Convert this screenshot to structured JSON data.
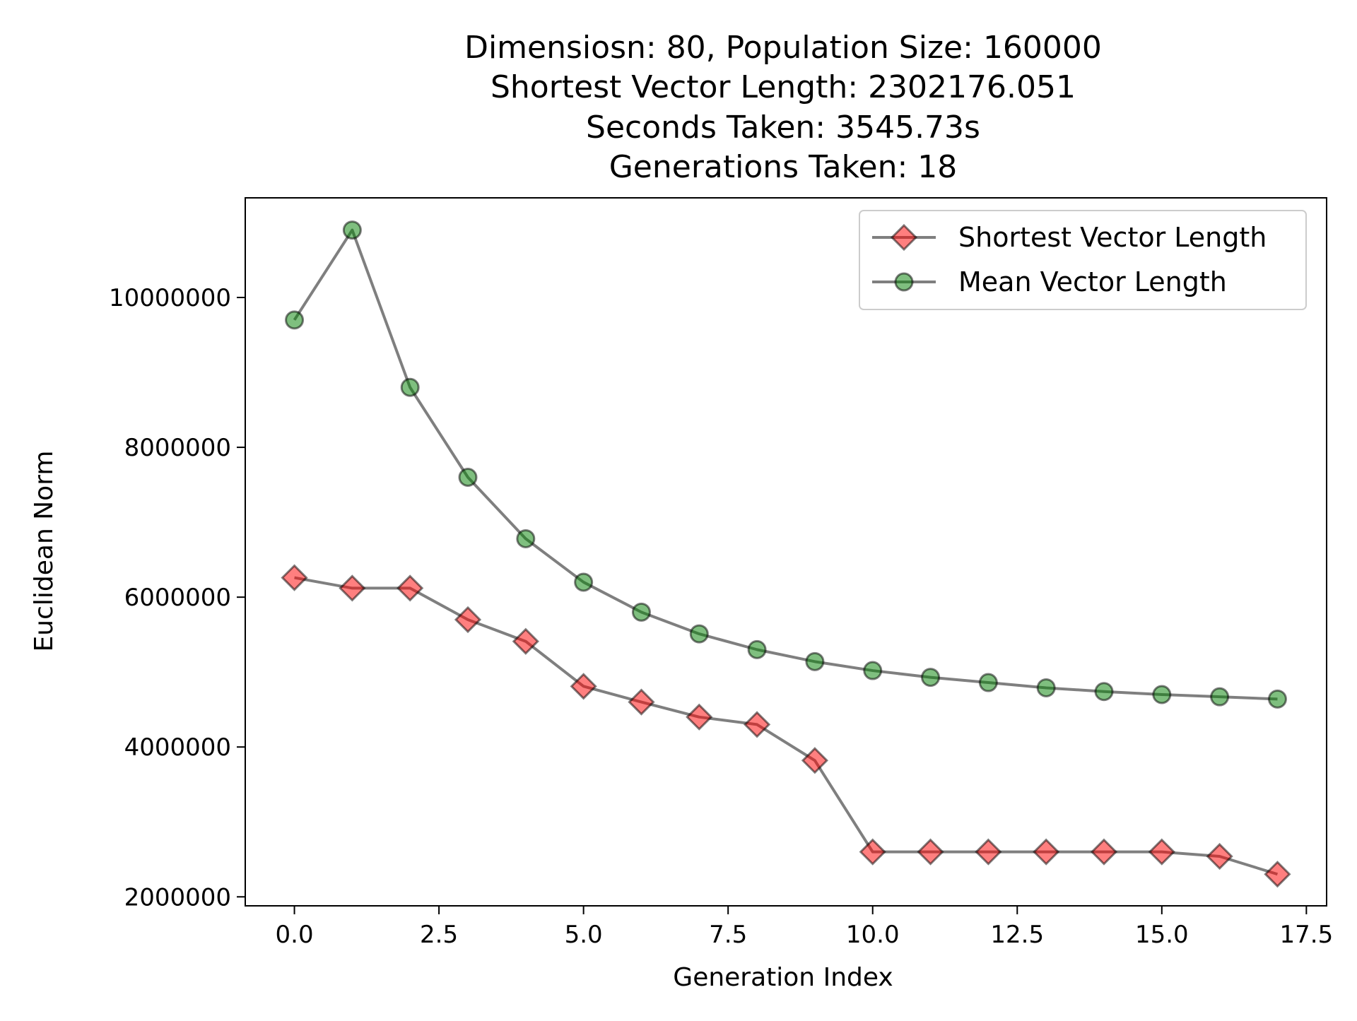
{
  "chart_data": {
    "type": "line",
    "title_lines": [
      "Dimensiosn: 80, Population Size: 160000",
      "Shortest Vector Length: 2302176.051",
      "Seconds Taken: 3545.73s",
      "Generations Taken: 18"
    ],
    "xlabel": "Generation Index",
    "ylabel": "Euclidean Norm",
    "xlim": [
      -0.85,
      17.85
    ],
    "ylim": [
      1880000,
      11330000
    ],
    "x_ticks": [
      0.0,
      2.5,
      5.0,
      7.5,
      10.0,
      12.5,
      15.0,
      17.5
    ],
    "x_tick_labels": [
      "0.0",
      "2.5",
      "5.0",
      "7.5",
      "10.0",
      "12.5",
      "15.0",
      "17.5"
    ],
    "y_ticks": [
      2000000,
      4000000,
      6000000,
      8000000,
      10000000
    ],
    "y_tick_labels": [
      "2000000",
      "4000000",
      "6000000",
      "8000000",
      "10000000"
    ],
    "grid": false,
    "legend_position": "top-right",
    "x": [
      0,
      1,
      2,
      3,
      4,
      5,
      6,
      7,
      8,
      9,
      10,
      11,
      12,
      13,
      14,
      15,
      16,
      17
    ],
    "series": [
      {
        "name": "Shortest Vector Length",
        "marker": "diamond",
        "marker_color": "#ff0000",
        "line_color": "#000000",
        "values": [
          6260000,
          6120000,
          6120000,
          5700000,
          5410000,
          4810000,
          4600000,
          4400000,
          4300000,
          3820000,
          2600000,
          2600000,
          2600000,
          2600000,
          2600000,
          2600000,
          2540000,
          2302176.051
        ]
      },
      {
        "name": "Mean Vector Length",
        "marker": "circle",
        "marker_color": "#008000",
        "line_color": "#000000",
        "values": [
          9700000,
          10900000,
          8800000,
          7600000,
          6780000,
          6200000,
          5800000,
          5510000,
          5300000,
          5140000,
          5020000,
          4930000,
          4860000,
          4790000,
          4740000,
          4700000,
          4670000,
          4640000
        ]
      }
    ]
  }
}
